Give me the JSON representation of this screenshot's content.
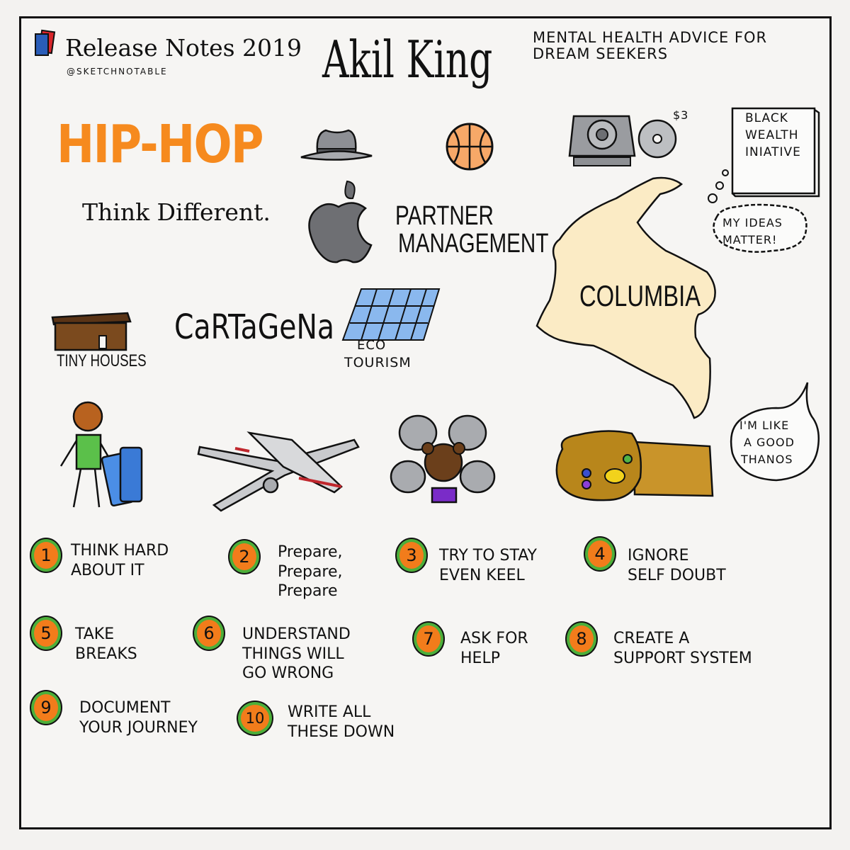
{
  "brand": {
    "title": "Release Notes 2019",
    "handle": "@SKETCHNOTABLE"
  },
  "speaker": "Akil King",
  "subtitle": "MENTAL HEALTH ADVICE FOR DREAM SEEKERS",
  "hiphop": "HIP-HOP",
  "price": "$3",
  "black_wealth": [
    "BLACK",
    "WEALTH",
    "INIATIVE"
  ],
  "think_different": "Think Different.",
  "partner_management": [
    "PARTNER",
    "MANAGEMENT"
  ],
  "my_ideas": [
    "MY IDEAS",
    "MATTER!"
  ],
  "country": "COLUMBIA",
  "tiny_houses": "TINY HOUSES",
  "cartagena": "CaRTaGeNa",
  "eco_tourism": [
    "ECO",
    "TOURISM"
  ],
  "thanos_quote": [
    "I'M LIKE",
    "A GOOD",
    "THANOS"
  ],
  "steps": [
    {
      "num": "1",
      "lines": [
        "THINK HARD",
        "ABOUT IT"
      ]
    },
    {
      "num": "2",
      "lines": [
        "Prepare,",
        "Prepare,",
        "Prepare"
      ]
    },
    {
      "num": "3",
      "lines": [
        "TRY TO STAY",
        "EVEN KEEL"
      ]
    },
    {
      "num": "4",
      "lines": [
        "IGNORE",
        "SELF DOUBT"
      ]
    },
    {
      "num": "5",
      "lines": [
        "TAKE",
        "BREAKS"
      ]
    },
    {
      "num": "6",
      "lines": [
        "UNDERSTAND",
        "THINGS WILL",
        "GO WRONG"
      ]
    },
    {
      "num": "7",
      "lines": [
        "ASK FOR",
        "HELP"
      ]
    },
    {
      "num": "8",
      "lines": [
        "CREATE a",
        "SUPPORT SYSTEM"
      ]
    },
    {
      "num": "9",
      "lines": [
        "DOCUMENT",
        "YOUR JOURNEY"
      ]
    },
    {
      "num": "10",
      "lines": [
        "WRITE ALL",
        "THESE DOWN"
      ]
    }
  ],
  "colors": {
    "orange": "#f68a1e",
    "green": "#4caf3a",
    "map": "#fbebc5",
    "brown": "#7b4a1e",
    "gold": "#b8861b"
  }
}
